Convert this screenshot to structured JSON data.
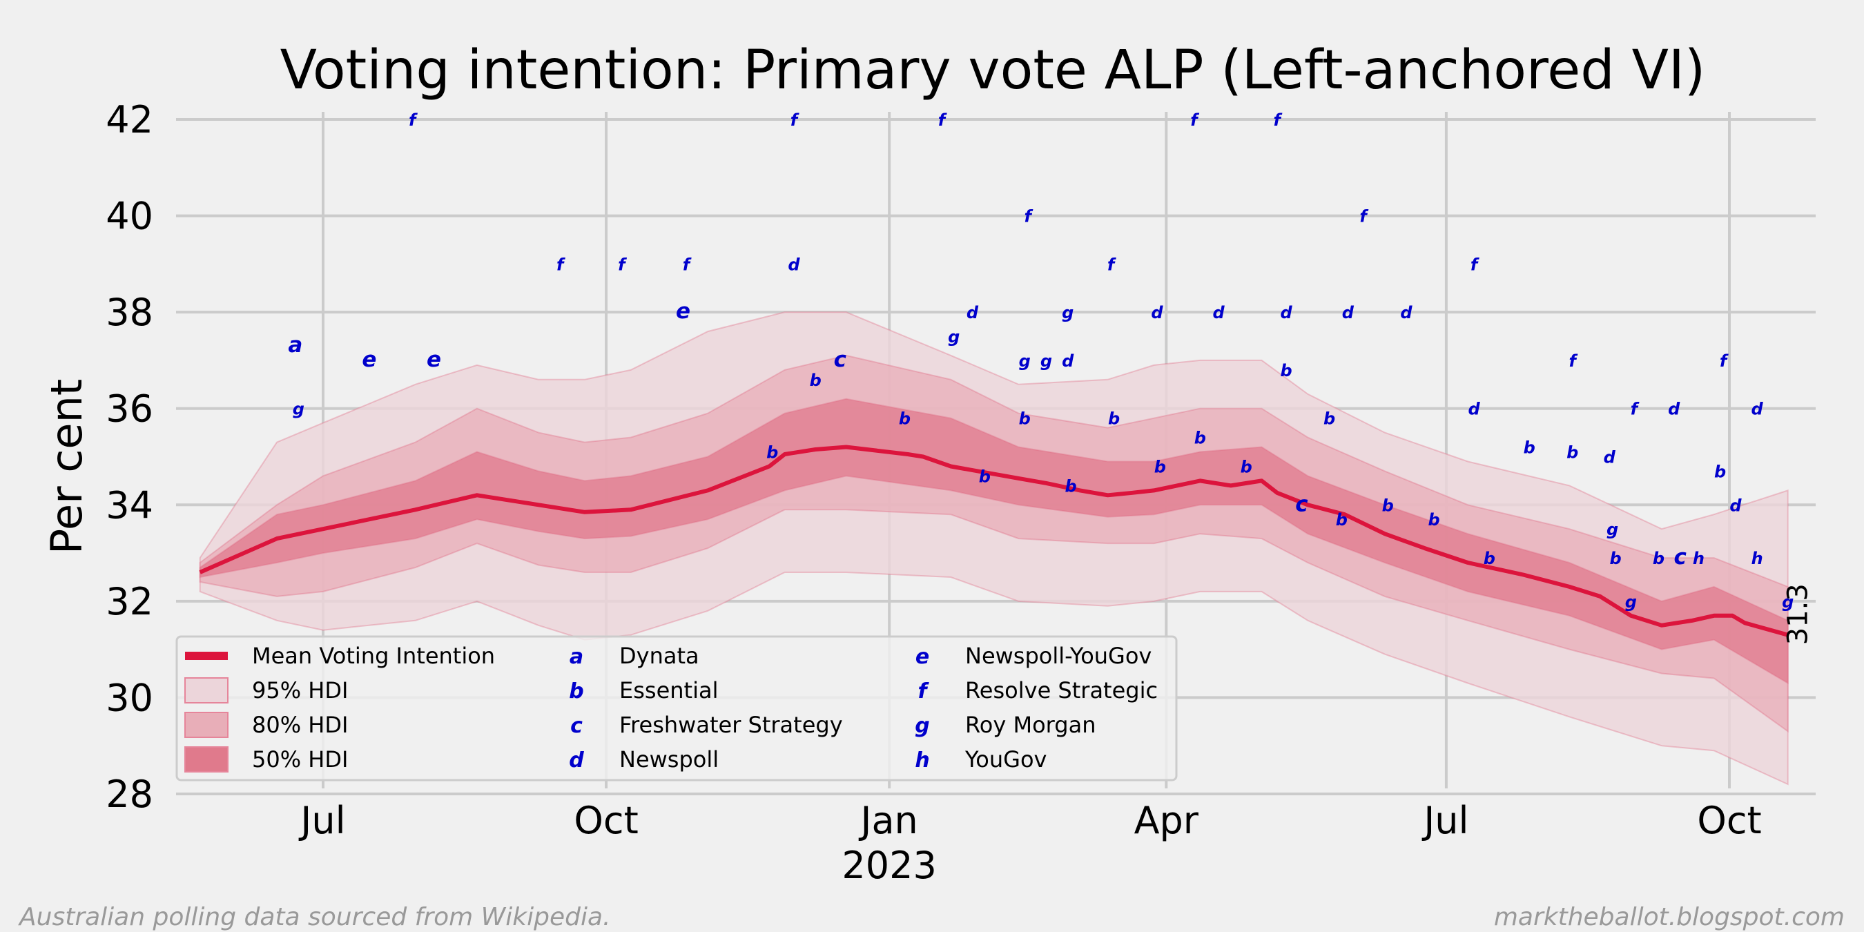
{
  "chart_data": {
    "type": "line",
    "title": "Voting intention: Primary vote ALP (Left-anchored VI)",
    "xlabel": "",
    "ylabel": "Per cent",
    "ylim": [
      28,
      42
    ],
    "yticks": [
      "28",
      "30",
      "32",
      "34",
      "36",
      "38",
      "40",
      "42"
    ],
    "x_unit": "days since 2022-07-01",
    "xlim": [
      -48,
      488
    ],
    "xticks": [
      {
        "label": "Jul",
        "x": 0
      },
      {
        "label": "Oct",
        "x": 92
      },
      {
        "label": "Jan",
        "x": 184,
        "sublabel": "2023"
      },
      {
        "label": "Apr",
        "x": 274
      },
      {
        "label": "Jul",
        "x": 365
      },
      {
        "label": "Oct",
        "x": 457
      }
    ],
    "grid": true,
    "end_label": "31.3",
    "series": [
      {
        "name": "Mean Voting Intention",
        "x": [
          -40,
          -15,
          0,
          30,
          50,
          70,
          85,
          100,
          125,
          145,
          150,
          160,
          170,
          190,
          195,
          204,
          226,
          235,
          246,
          255,
          263,
          270,
          285,
          295,
          305,
          310,
          320,
          332,
          345,
          358,
          372,
          390,
          405,
          415,
          425,
          435,
          445,
          452,
          458,
          462,
          476
        ],
        "y": [
          32.6,
          33.3,
          33.5,
          33.9,
          34.2,
          34.0,
          33.85,
          33.9,
          34.3,
          34.8,
          35.05,
          35.15,
          35.2,
          35.05,
          35.0,
          34.8,
          34.55,
          34.45,
          34.3,
          34.2,
          34.25,
          34.3,
          34.5,
          34.4,
          34.5,
          34.25,
          34.0,
          33.8,
          33.4,
          33.1,
          32.8,
          32.55,
          32.3,
          32.1,
          31.7,
          31.5,
          31.6,
          31.7,
          31.7,
          31.55,
          31.3
        ]
      },
      {
        "name": "50% HDI",
        "x": [
          -40,
          -15,
          0,
          30,
          50,
          70,
          85,
          100,
          125,
          150,
          170,
          204,
          226,
          255,
          270,
          285,
          305,
          320,
          345,
          372,
          405,
          435,
          452,
          476
        ],
        "lower": [
          32.5,
          32.8,
          33.0,
          33.3,
          33.7,
          33.45,
          33.3,
          33.35,
          33.7,
          34.3,
          34.6,
          34.3,
          34.0,
          33.75,
          33.8,
          34.0,
          34.0,
          33.4,
          32.8,
          32.2,
          31.7,
          31.0,
          31.2,
          30.3
        ],
        "upper": [
          32.7,
          33.8,
          34.0,
          34.5,
          35.1,
          34.7,
          34.5,
          34.6,
          35.0,
          35.9,
          36.2,
          35.8,
          35.2,
          34.9,
          34.9,
          35.1,
          35.2,
          34.6,
          34.0,
          33.4,
          32.8,
          32.0,
          32.3,
          31.6
        ]
      },
      {
        "name": "80% HDI",
        "x": [
          -40,
          -15,
          0,
          30,
          50,
          70,
          85,
          100,
          125,
          150,
          170,
          204,
          226,
          255,
          270,
          285,
          305,
          320,
          345,
          372,
          405,
          435,
          452,
          476
        ],
        "lower": [
          32.4,
          32.1,
          32.2,
          32.7,
          33.2,
          32.75,
          32.6,
          32.6,
          33.1,
          33.9,
          33.9,
          33.8,
          33.3,
          33.2,
          33.2,
          33.4,
          33.3,
          32.8,
          32.1,
          31.6,
          31.0,
          30.5,
          30.4,
          29.3
        ],
        "upper": [
          32.8,
          34.0,
          34.6,
          35.3,
          36.0,
          35.5,
          35.3,
          35.4,
          35.9,
          36.8,
          37.1,
          36.6,
          35.9,
          35.6,
          35.8,
          36.0,
          36.0,
          35.4,
          34.7,
          34.0,
          33.5,
          32.9,
          32.9,
          32.3
        ]
      },
      {
        "name": "95% HDI",
        "x": [
          -40,
          -15,
          0,
          30,
          50,
          70,
          85,
          100,
          125,
          150,
          170,
          204,
          226,
          255,
          270,
          285,
          305,
          320,
          345,
          372,
          405,
          435,
          452,
          476
        ],
        "lower": [
          32.2,
          31.6,
          31.4,
          31.6,
          32.0,
          31.5,
          31.2,
          31.3,
          31.8,
          32.6,
          32.6,
          32.5,
          32.0,
          31.9,
          32.0,
          32.2,
          32.2,
          31.6,
          30.9,
          30.3,
          29.6,
          29.0,
          28.9,
          28.2
        ],
        "upper": [
          32.9,
          35.3,
          35.7,
          36.5,
          36.9,
          36.6,
          36.6,
          36.8,
          37.6,
          38.0,
          38.0,
          37.1,
          36.5,
          36.6,
          36.9,
          37.0,
          37.0,
          36.3,
          35.5,
          34.9,
          34.4,
          33.5,
          33.8,
          34.3
        ]
      }
    ],
    "polls": [
      {
        "s": "a",
        "x": -9,
        "y": 37.3
      },
      {
        "s": "g",
        "x": -8,
        "y": 36.0
      },
      {
        "s": "e",
        "x": 15,
        "y": 37.0
      },
      {
        "s": "e",
        "x": 36,
        "y": 37.0
      },
      {
        "s": "f",
        "x": 29,
        "y": 42.0
      },
      {
        "s": "f",
        "x": 77,
        "y": 39.0
      },
      {
        "s": "f",
        "x": 97,
        "y": 39.0
      },
      {
        "s": "f",
        "x": 118,
        "y": 39.0
      },
      {
        "s": "e",
        "x": 117,
        "y": 38.0
      },
      {
        "s": "f",
        "x": 153,
        "y": 42.0
      },
      {
        "s": "d",
        "x": 153,
        "y": 39.0
      },
      {
        "s": "b",
        "x": 146,
        "y": 35.1
      },
      {
        "s": "b",
        "x": 160,
        "y": 36.6
      },
      {
        "s": "c",
        "x": 168,
        "y": 37.0
      },
      {
        "s": "f",
        "x": 201,
        "y": 42.0
      },
      {
        "s": "g",
        "x": 205,
        "y": 37.5
      },
      {
        "s": "d",
        "x": 211,
        "y": 38.0
      },
      {
        "s": "b",
        "x": 189,
        "y": 35.8
      },
      {
        "s": "b",
        "x": 215,
        "y": 34.6
      },
      {
        "s": "f",
        "x": 229,
        "y": 40.0
      },
      {
        "s": "g",
        "x": 228,
        "y": 37.0
      },
      {
        "s": "g",
        "x": 235,
        "y": 37.0
      },
      {
        "s": "d",
        "x": 242,
        "y": 37.0
      },
      {
        "s": "g",
        "x": 242,
        "y": 38.0
      },
      {
        "s": "b",
        "x": 228,
        "y": 35.8
      },
      {
        "s": "b",
        "x": 243,
        "y": 34.4
      },
      {
        "s": "f",
        "x": 256,
        "y": 39.0
      },
      {
        "s": "b",
        "x": 257,
        "y": 35.8
      },
      {
        "s": "d",
        "x": 271,
        "y": 38.0
      },
      {
        "s": "b",
        "x": 272,
        "y": 34.8
      },
      {
        "s": "f",
        "x": 283,
        "y": 42.0
      },
      {
        "s": "d",
        "x": 291,
        "y": 38.0
      },
      {
        "s": "b",
        "x": 285,
        "y": 35.4
      },
      {
        "s": "b",
        "x": 300,
        "y": 34.8
      },
      {
        "s": "f",
        "x": 310,
        "y": 42.0
      },
      {
        "s": "d",
        "x": 313,
        "y": 38.0
      },
      {
        "s": "b",
        "x": 313,
        "y": 36.8
      },
      {
        "s": "c",
        "x": 318,
        "y": 34.0
      },
      {
        "s": "b",
        "x": 327,
        "y": 35.8
      },
      {
        "s": "d",
        "x": 333,
        "y": 38.0
      },
      {
        "s": "f",
        "x": 338,
        "y": 40.0
      },
      {
        "s": "b",
        "x": 331,
        "y": 33.7
      },
      {
        "s": "d",
        "x": 352,
        "y": 38.0
      },
      {
        "s": "b",
        "x": 346,
        "y": 34.0
      },
      {
        "s": "b",
        "x": 361,
        "y": 33.7
      },
      {
        "s": "f",
        "x": 374,
        "y": 39.0
      },
      {
        "s": "d",
        "x": 374,
        "y": 36.0
      },
      {
        "s": "b",
        "x": 379,
        "y": 32.9
      },
      {
        "s": "f",
        "x": 406,
        "y": 37.0
      },
      {
        "s": "b",
        "x": 392,
        "y": 35.2
      },
      {
        "s": "b",
        "x": 406,
        "y": 35.1
      },
      {
        "s": "d",
        "x": 418,
        "y": 35.0
      },
      {
        "s": "g",
        "x": 419,
        "y": 33.5
      },
      {
        "s": "b",
        "x": 420,
        "y": 32.9
      },
      {
        "s": "f",
        "x": 426,
        "y": 36.0
      },
      {
        "s": "g",
        "x": 425,
        "y": 32.0
      },
      {
        "s": "b",
        "x": 434,
        "y": 32.9
      },
      {
        "s": "d",
        "x": 439,
        "y": 36.0
      },
      {
        "s": "c",
        "x": 441,
        "y": 32.9
      },
      {
        "s": "h",
        "x": 447,
        "y": 32.9
      },
      {
        "s": "f",
        "x": 455,
        "y": 37.0
      },
      {
        "s": "b",
        "x": 454,
        "y": 34.7
      },
      {
        "s": "d",
        "x": 459,
        "y": 34.0
      },
      {
        "s": "d",
        "x": 466,
        "y": 36.0
      },
      {
        "s": "h",
        "x": 466,
        "y": 32.9
      },
      {
        "s": "g",
        "x": 476,
        "y": 32.0
      }
    ],
    "legend": {
      "placement": "lower-left",
      "entries": [
        {
          "kind": "line",
          "label": "Mean Voting Intention"
        },
        {
          "kind": "band95",
          "label": "95% HDI"
        },
        {
          "kind": "band80",
          "label": "80% HDI"
        },
        {
          "kind": "band50",
          "label": "50% HDI"
        },
        {
          "kind": "sym",
          "symbol": "a",
          "label": "Dynata"
        },
        {
          "kind": "sym",
          "symbol": "b",
          "label": "Essential"
        },
        {
          "kind": "sym",
          "symbol": "c",
          "label": "Freshwater Strategy"
        },
        {
          "kind": "sym",
          "symbol": "d",
          "label": "Newspoll"
        },
        {
          "kind": "sym",
          "symbol": "e",
          "label": "Newspoll-YouGov"
        },
        {
          "kind": "sym",
          "symbol": "f",
          "label": "Resolve Strategic"
        },
        {
          "kind": "sym",
          "symbol": "g",
          "label": "Roy Morgan"
        },
        {
          "kind": "sym",
          "symbol": "h",
          "label": "YouGov"
        }
      ]
    },
    "colors": {
      "line": "#dc143c",
      "band50": "#e07a8c",
      "band80": "#e8aeb8",
      "band95": "#ecd5da",
      "poll": "#0000cc",
      "background": "#f0f0f0",
      "grid": "#cbcbcb"
    }
  },
  "footer": {
    "left": "Australian polling data sourced from Wikipedia.",
    "right": "marktheballot.blogspot.com"
  }
}
